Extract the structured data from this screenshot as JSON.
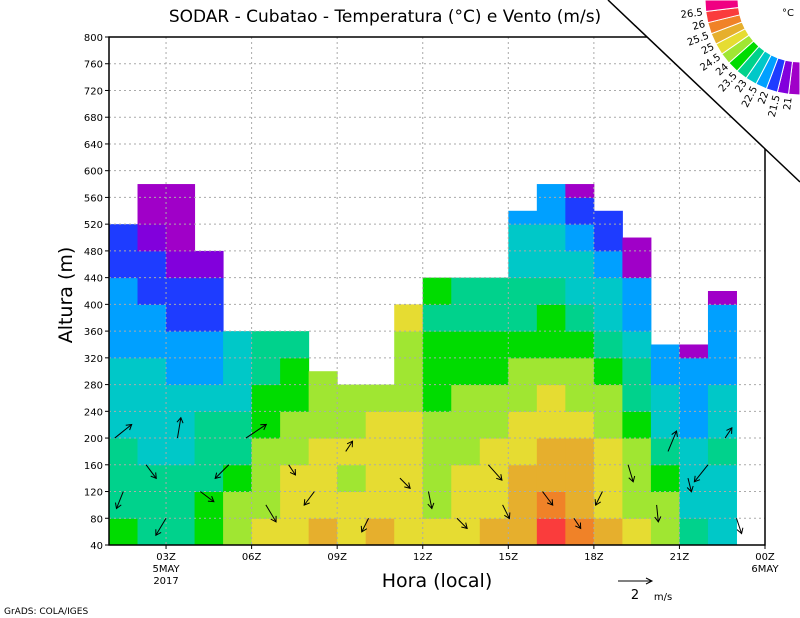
{
  "chart_data": {
    "type": "heatmap",
    "title": "SODAR - Cubatao - Temperatura (°C) e Vento (m/s)",
    "xlabel": "Hora (local)",
    "ylabel": "Altura (m)",
    "xlim_hours": [
      1,
      24
    ],
    "ylim": [
      40,
      800
    ],
    "yticks": [
      40,
      80,
      120,
      160,
      200,
      240,
      280,
      320,
      360,
      400,
      440,
      480,
      520,
      560,
      600,
      640,
      680,
      720,
      760,
      800
    ],
    "xticks": [
      {
        "hour": 3,
        "label": "03Z",
        "sub": [
          "5MAY",
          "2017"
        ]
      },
      {
        "hour": 6,
        "label": "06Z",
        "sub": []
      },
      {
        "hour": 9,
        "label": "09Z",
        "sub": []
      },
      {
        "hour": 12,
        "label": "12Z",
        "sub": []
      },
      {
        "hour": 15,
        "label": "15Z",
        "sub": []
      },
      {
        "hour": 18,
        "label": "18Z",
        "sub": []
      },
      {
        "hour": 21,
        "label": "21Z",
        "sub": []
      },
      {
        "hour": 24,
        "label": "00Z",
        "sub": [
          "6MAY"
        ]
      }
    ],
    "grid": true,
    "cell_height_m": 40,
    "columns": [
      {
        "hour": 1,
        "top": 520,
        "temps": [
          23.6,
          23.4,
          23.2,
          23.0,
          22.8,
          22.7,
          22.5,
          22.3,
          22.2,
          22.0,
          21.8,
          21.7
        ]
      },
      {
        "hour": 2,
        "top": 580,
        "temps": [
          23.4,
          23.2,
          23.0,
          22.9,
          22.8,
          22.6,
          22.5,
          22.3,
          22.1,
          21.8,
          21.6,
          21.3,
          20.8,
          20.6
        ]
      },
      {
        "hour": 3,
        "top": 580,
        "temps": [
          23.3,
          23.1,
          23.0,
          22.9,
          22.8,
          22.6,
          22.4,
          22.1,
          21.8,
          21.5,
          21.2,
          20.8,
          20.6,
          20.5
        ]
      },
      {
        "hour": 4,
        "top": 480,
        "temps": [
          23.6,
          23.5,
          23.4,
          23.2,
          23.0,
          22.7,
          22.4,
          22.1,
          21.8,
          21.6,
          21.4
        ]
      },
      {
        "hour": 5,
        "top": 360,
        "temps": [
          24.3,
          24.0,
          23.7,
          23.4,
          23.1,
          22.9,
          22.7,
          22.5
        ]
      },
      {
        "hour": 6,
        "top": 360,
        "temps": [
          24.6,
          24.4,
          24.2,
          24.0,
          23.8,
          23.5,
          23.2,
          23.0
        ]
      },
      {
        "hour": 7,
        "top": 360,
        "temps": [
          24.9,
          24.7,
          24.5,
          24.3,
          24.0,
          23.8,
          23.5,
          23.2
        ]
      },
      {
        "hour": 8,
        "top": 300,
        "temps": [
          25.0,
          24.9,
          24.7,
          24.5,
          24.3,
          24.1,
          24.0
        ]
      },
      {
        "hour": 9,
        "top": 280,
        "temps": [
          24.8,
          24.6,
          24.2,
          24.5,
          24.4,
          24.2
        ]
      },
      {
        "hour": 10,
        "top": 280,
        "temps": [
          25.0,
          24.8,
          24.7,
          24.6,
          24.5,
          24.3
        ]
      },
      {
        "hour": 11,
        "top": 400,
        "temps": [
          24.9,
          24.8,
          24.7,
          24.6,
          24.5,
          24.3,
          24.1,
          24.0,
          24.8
        ]
      },
      {
        "hour": 12,
        "top": 440,
        "temps": [
          24.6,
          24.4,
          24.3,
          24.2,
          24.0,
          23.8,
          23.6,
          23.5,
          23.4,
          23.5
        ]
      },
      {
        "hour": 13,
        "top": 440,
        "temps": [
          24.8,
          24.6,
          24.5,
          24.3,
          24.2,
          24.0,
          23.8,
          23.5,
          23.3,
          23.3
        ]
      },
      {
        "hour": 14,
        "top": 440,
        "temps": [
          25.1,
          24.9,
          24.7,
          24.5,
          24.2,
          24.0,
          23.8,
          23.6,
          23.4,
          23.2
        ]
      },
      {
        "hour": 15,
        "top": 540,
        "temps": [
          25.3,
          25.1,
          25.0,
          24.8,
          24.5,
          24.2,
          24.0,
          23.7,
          23.4,
          23.1,
          22.8,
          22.5,
          22.3
        ]
      },
      {
        "hour": 16,
        "top": 580,
        "temps": [
          26.2,
          25.5,
          25.3,
          25.0,
          24.8,
          24.5,
          24.2,
          23.8,
          23.5,
          23.2,
          22.9,
          22.6,
          22.4,
          22.2
        ]
      },
      {
        "hour": 17,
        "top": 580,
        "temps": [
          25.9,
          25.4,
          25.2,
          25.0,
          24.7,
          24.4,
          24.1,
          23.7,
          23.3,
          22.9,
          22.5,
          22.2,
          21.8,
          20.9
        ]
      },
      {
        "hour": 18,
        "top": 540,
        "temps": [
          25.0,
          24.9,
          24.7,
          24.5,
          24.3,
          24.0,
          23.6,
          23.2,
          22.8,
          22.5,
          22.2,
          21.8,
          21.5
        ]
      },
      {
        "hour": 19,
        "top": 500,
        "temps": [
          24.6,
          24.4,
          24.2,
          24.0,
          23.7,
          23.4,
          23.0,
          22.7,
          22.4,
          22.0,
          20.9,
          20.8
        ]
      },
      {
        "hour": 20,
        "top": 340,
        "temps": [
          24.2,
          24.0,
          23.6,
          23.2,
          22.8,
          22.6,
          22.4,
          22.2
        ]
      },
      {
        "hour": 21,
        "top": 340,
        "temps": [
          23.0,
          22.8,
          22.6,
          22.5,
          22.4,
          22.3,
          22.0,
          20.9
        ]
      },
      {
        "hour": 22,
        "top": 420,
        "temps": [
          22.6,
          22.8,
          22.9,
          23.0,
          22.8,
          22.6,
          22.4,
          22.2,
          22.0,
          20.9
        ]
      }
    ],
    "wind": [
      {
        "hour": 1.2,
        "alt": 200,
        "u": 1.0,
        "v": 0.8
      },
      {
        "hour": 1.5,
        "alt": 120,
        "u": -0.4,
        "v": -1.0
      },
      {
        "hour": 2.3,
        "alt": 160,
        "u": 0.6,
        "v": -0.8
      },
      {
        "hour": 3.0,
        "alt": 80,
        "u": -0.6,
        "v": -1.0
      },
      {
        "hour": 3.4,
        "alt": 200,
        "u": 0.2,
        "v": 1.2
      },
      {
        "hour": 4.2,
        "alt": 120,
        "u": 0.8,
        "v": -0.6
      },
      {
        "hour": 5.2,
        "alt": 160,
        "u": -0.8,
        "v": -0.8
      },
      {
        "hour": 5.8,
        "alt": 200,
        "u": 1.2,
        "v": 0.8
      },
      {
        "hour": 6.5,
        "alt": 100,
        "u": 0.6,
        "v": -1.0
      },
      {
        "hour": 7.3,
        "alt": 160,
        "u": 0.4,
        "v": -0.6
      },
      {
        "hour": 8.2,
        "alt": 120,
        "u": -0.6,
        "v": -0.8
      },
      {
        "hour": 9.3,
        "alt": 180,
        "u": 0.4,
        "v": 0.6
      },
      {
        "hour": 10.1,
        "alt": 80,
        "u": -0.4,
        "v": -0.8
      },
      {
        "hour": 11.2,
        "alt": 140,
        "u": 0.6,
        "v": -0.6
      },
      {
        "hour": 12.2,
        "alt": 120,
        "u": 0.2,
        "v": -1.0
      },
      {
        "hour": 13.2,
        "alt": 80,
        "u": 0.6,
        "v": -0.6
      },
      {
        "hour": 14.3,
        "alt": 160,
        "u": 0.8,
        "v": -0.9
      },
      {
        "hour": 14.8,
        "alt": 100,
        "u": 0.4,
        "v": -0.8
      },
      {
        "hour": 16.2,
        "alt": 120,
        "u": 0.6,
        "v": -0.8
      },
      {
        "hour": 17.3,
        "alt": 80,
        "u": 0.4,
        "v": -0.6
      },
      {
        "hour": 18.3,
        "alt": 120,
        "u": -0.4,
        "v": -0.8
      },
      {
        "hour": 19.2,
        "alt": 160,
        "u": 0.3,
        "v": -1.0
      },
      {
        "hour": 20.2,
        "alt": 100,
        "u": 0.1,
        "v": -1.0
      },
      {
        "hour": 20.6,
        "alt": 180,
        "u": 0.5,
        "v": 1.2
      },
      {
        "hour": 21.3,
        "alt": 140,
        "u": 0.2,
        "v": -0.8
      },
      {
        "hour": 22.0,
        "alt": 160,
        "u": -0.8,
        "v": -1.0
      },
      {
        "hour": 22.6,
        "alt": 200,
        "u": 0.4,
        "v": 0.6
      },
      {
        "hour": 23.0,
        "alt": 80,
        "u": 0.3,
        "v": -0.9
      }
    ],
    "colorbar": {
      "unit": "°C",
      "levels": [
        "21",
        "21.5",
        "22",
        "22.5",
        "23",
        "23.5",
        "24",
        "24.5",
        "25",
        "25.5",
        "26",
        "26.5"
      ],
      "colors": [
        "#a000c8",
        "#8200dc",
        "#1e3cff",
        "#00a0ff",
        "#00c8c8",
        "#00d28c",
        "#00dc00",
        "#a0e632",
        "#e6dc32",
        "#e6af2d",
        "#f08228",
        "#fa3c3c",
        "#f00082"
      ]
    },
    "vector_key": {
      "value": "2",
      "unit": "m/s"
    }
  },
  "credit": "GrADS: COLA/IGES"
}
